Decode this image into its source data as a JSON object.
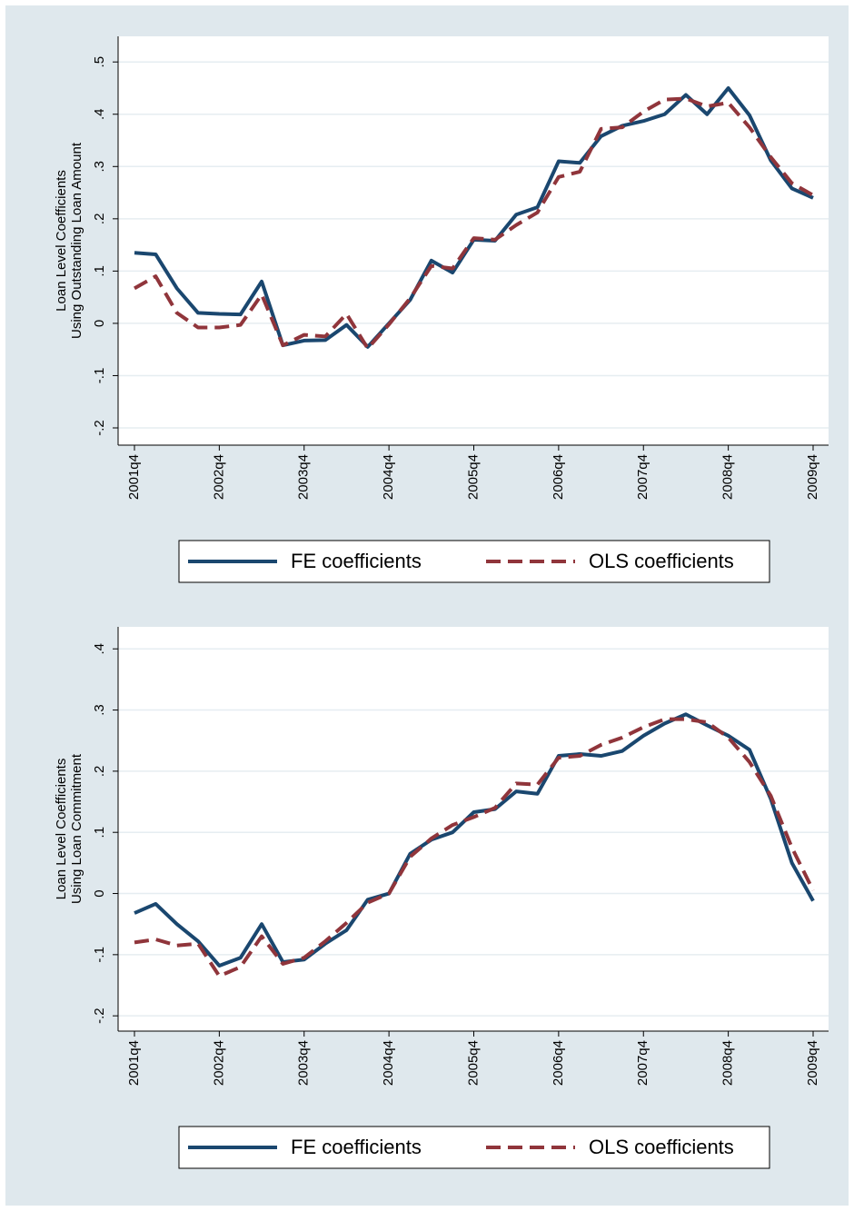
{
  "chart_data": [
    {
      "type": "line",
      "ylabel": [
        "Loan Level Coefficients",
        "Using Outstanding Loan Amount"
      ],
      "categories": [
        "2001q4",
        null,
        null,
        null,
        "2002q4",
        null,
        null,
        null,
        "2003q4",
        null,
        null,
        null,
        "2004q4",
        null,
        null,
        null,
        "2005q4",
        null,
        null,
        null,
        "2006q4",
        null,
        null,
        null,
        "2007q4",
        null,
        null,
        null,
        "2008q4",
        null,
        null,
        null,
        "2009q4"
      ],
      "series": [
        {
          "name": "FE coefficients",
          "color": "#1a476f",
          "linestyle": "solid",
          "values": [
            0.135,
            0.132,
            0.067,
            0.02,
            0.018,
            0.017,
            0.08,
            -0.042,
            -0.033,
            -0.032,
            -0.003,
            -0.045,
            0,
            0.045,
            0.12,
            0.097,
            0.16,
            0.158,
            0.208,
            0.222,
            0.31,
            0.307,
            0.358,
            0.378,
            0.387,
            0.4,
            0.437,
            0.4,
            0.45,
            0.398,
            0.312,
            0.258,
            0.24
          ]
        },
        {
          "name": "OLS coefficients",
          "color": "#90353b",
          "linestyle": "dashed",
          "values": [
            0.067,
            0.09,
            0.02,
            -0.008,
            -0.008,
            -0.003,
            0.055,
            -0.042,
            -0.022,
            -0.025,
            0.018,
            -0.048,
            -0.002,
            0.048,
            0.11,
            0.105,
            0.163,
            0.16,
            0.188,
            0.212,
            0.28,
            0.29,
            0.372,
            0.375,
            0.405,
            0.428,
            0.43,
            0.415,
            0.422,
            0.375,
            0.318,
            0.268,
            0.245
          ]
        }
      ],
      "ylim": [
        -0.233,
        0.549
      ],
      "yticks": [
        {
          "value": -0.2,
          "label": "-.2"
        },
        {
          "value": -0.1,
          "label": "-.1"
        },
        0,
        {
          "value": 0.1,
          "label": ".1"
        },
        {
          "value": 0.2,
          "label": ".2"
        },
        {
          "value": 0.3,
          "label": ".3"
        },
        {
          "value": 0.4,
          "label": ".4"
        },
        {
          "value": 0.5,
          "label": ".5"
        }
      ],
      "grid": true,
      "legend": "bottom"
    },
    {
      "type": "line",
      "ylabel": [
        "Loan Level Coefficients",
        "Using Loan Commitment"
      ],
      "categories": [
        "2001q4",
        null,
        null,
        null,
        "2002q4",
        null,
        null,
        null,
        "2003q4",
        null,
        null,
        null,
        "2004q4",
        null,
        null,
        null,
        "2005q4",
        null,
        null,
        null,
        "2006q4",
        null,
        null,
        null,
        "2007q4",
        null,
        null,
        null,
        "2008q4",
        null,
        null,
        null,
        "2009q4"
      ],
      "series": [
        {
          "name": "FE coefficients",
          "color": "#1a476f",
          "linestyle": "solid",
          "values": [
            -0.032,
            -0.017,
            -0.05,
            -0.078,
            -0.118,
            -0.105,
            -0.05,
            -0.112,
            -0.108,
            -0.082,
            -0.06,
            -0.01,
            0,
            0.065,
            0.088,
            0.1,
            0.133,
            0.138,
            0.167,
            0.163,
            0.225,
            0.228,
            0.225,
            0.233,
            0.258,
            0.278,
            0.293,
            0.275,
            0.258,
            0.235,
            0.155,
            0.05,
            -0.012
          ]
        },
        {
          "name": "OLS coefficients",
          "color": "#90353b",
          "linestyle": "dashed",
          "values": [
            -0.08,
            -0.075,
            -0.085,
            -0.082,
            -0.135,
            -0.12,
            -0.07,
            -0.115,
            -0.105,
            -0.078,
            -0.048,
            -0.015,
            0,
            0.06,
            0.09,
            0.112,
            0.125,
            0.14,
            0.18,
            0.178,
            0.222,
            0.225,
            0.243,
            0.255,
            0.272,
            0.285,
            0.285,
            0.28,
            0.255,
            0.215,
            0.16,
            0.075,
            0.005
          ]
        }
      ],
      "ylim": [
        -0.225,
        0.436
      ],
      "yticks": [
        {
          "value": -0.2,
          "label": "-.2"
        },
        {
          "value": -0.1,
          "label": "-.1"
        },
        0,
        {
          "value": 0.1,
          "label": ".1"
        },
        {
          "value": 0.2,
          "label": ".2"
        },
        {
          "value": 0.3,
          "label": ".3"
        },
        {
          "value": 0.4,
          "label": ".4"
        }
      ],
      "grid": true,
      "legend": "bottom"
    }
  ]
}
